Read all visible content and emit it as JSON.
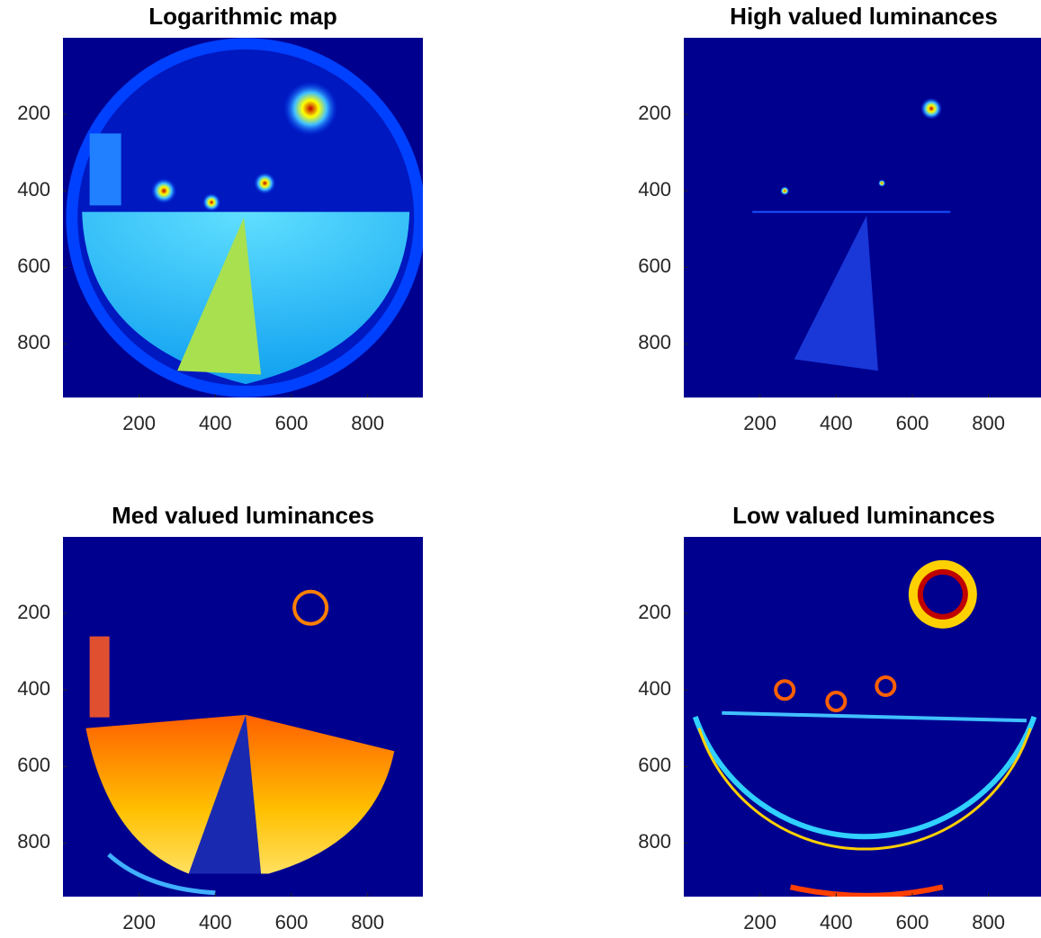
{
  "chart_data": [
    {
      "type": "image",
      "title": "Logarithmic map",
      "xlim": [
        0,
        945
      ],
      "ylim": [
        0,
        940
      ],
      "xticks": [
        200,
        400,
        600,
        800
      ],
      "yticks": [
        200,
        400,
        600,
        800
      ]
    },
    {
      "type": "image",
      "title": "High valued luminances",
      "xlim": [
        0,
        945
      ],
      "ylim": [
        0,
        940
      ],
      "xticks": [
        200,
        400,
        600,
        800
      ],
      "yticks": [
        200,
        400,
        600,
        800
      ]
    },
    {
      "type": "image",
      "title": "Med valued luminances",
      "xlim": [
        0,
        945
      ],
      "ylim": [
        0,
        940
      ],
      "xticks": [
        200,
        400,
        600,
        800
      ],
      "yticks": [
        200,
        400,
        600,
        800
      ]
    },
    {
      "type": "image",
      "title": "Low valued luminances",
      "xlim": [
        0,
        945
      ],
      "ylim": [
        0,
        940
      ],
      "xticks": [
        200,
        400,
        600,
        800
      ],
      "yticks": [
        200,
        400,
        600,
        800
      ]
    }
  ]
}
